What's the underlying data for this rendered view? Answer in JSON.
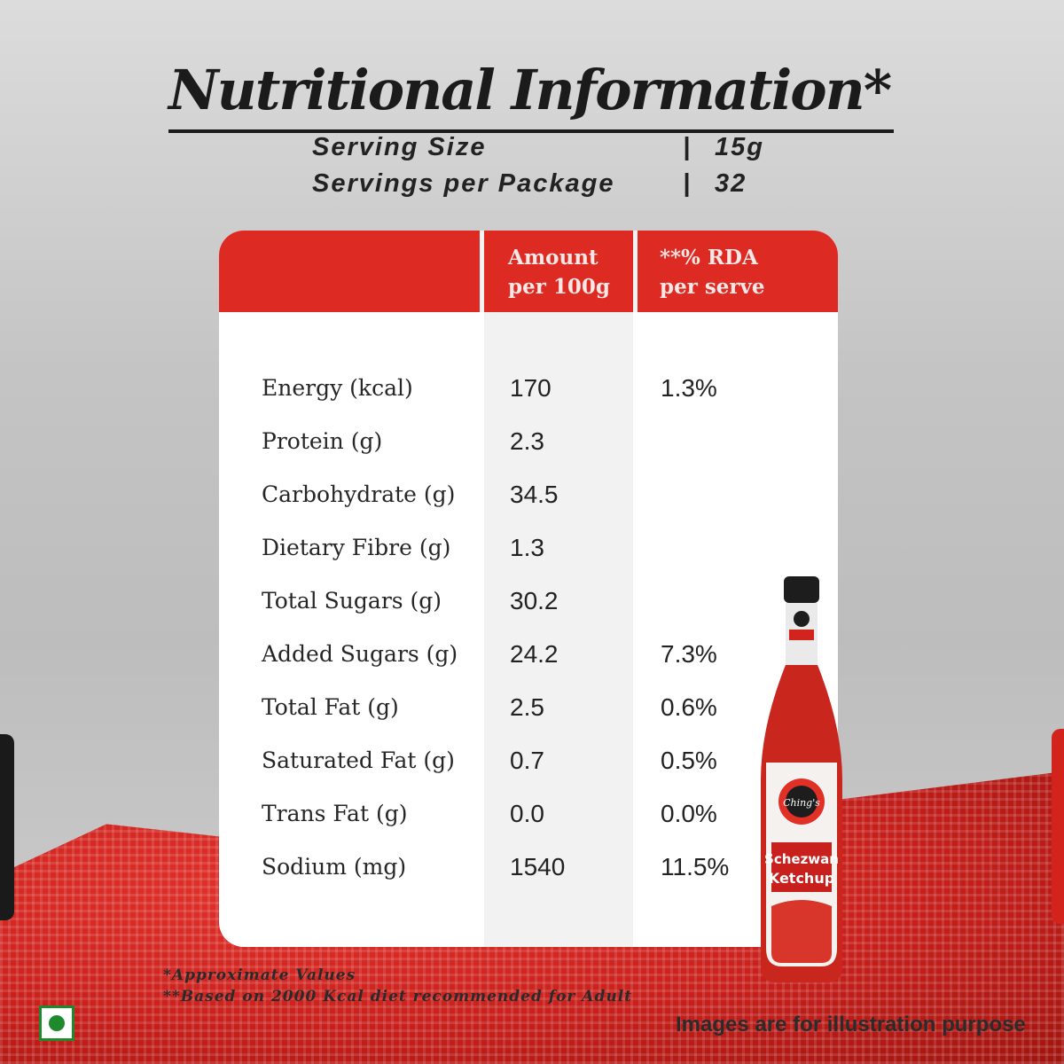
{
  "title": "Nutritional Information*",
  "serving": [
    {
      "label": "Serving Size",
      "separator": "|",
      "value": "15g"
    },
    {
      "label": "Servings per Package",
      "separator": "|",
      "value": "32"
    }
  ],
  "table": {
    "headers": {
      "amount_line1": "Amount",
      "amount_line2": "per 100g",
      "rda_line1": "**% RDA",
      "rda_line2": "per serve"
    },
    "rows": [
      {
        "nutrient": "Energy (kcal)",
        "amount": "170",
        "rda": "1.3%"
      },
      {
        "nutrient": "Protein (g)",
        "amount": "2.3",
        "rda": ""
      },
      {
        "nutrient": "Carbohydrate (g)",
        "amount": "34.5",
        "rda": ""
      },
      {
        "nutrient": "Dietary Fibre (g)",
        "amount": "1.3",
        "rda": ""
      },
      {
        "nutrient": "Total Sugars (g)",
        "amount": "30.2",
        "rda": ""
      },
      {
        "nutrient": "Added Sugars (g)",
        "amount": "24.2",
        "rda": "7.3%"
      },
      {
        "nutrient": "Total Fat (g)",
        "amount": "2.5",
        "rda": "0.6%"
      },
      {
        "nutrient": "Saturated Fat (g)",
        "amount": "0.7",
        "rda": "0.5%"
      },
      {
        "nutrient": "Trans Fat (g)",
        "amount": "0.0",
        "rda": "0.0%"
      },
      {
        "nutrient": "Sodium (mg)",
        "amount": "1540",
        "rda": "11.5%"
      }
    ]
  },
  "product": {
    "brand": "Ching's",
    "name_line1": "Schezwan",
    "name_line2": "Ketchup"
  },
  "footnotes": {
    "approx": "*Approximate Values",
    "rda_basis": "**Based on 2000 Kcal diet recommended for Adult"
  },
  "disclaimer": "Images are for illustration purpose",
  "colors": {
    "accent_red": "#dd2a22",
    "veg_green": "#1f8a2c",
    "text_dark": "#1b1b1b"
  },
  "icons": [
    "veg-mark-icon"
  ]
}
